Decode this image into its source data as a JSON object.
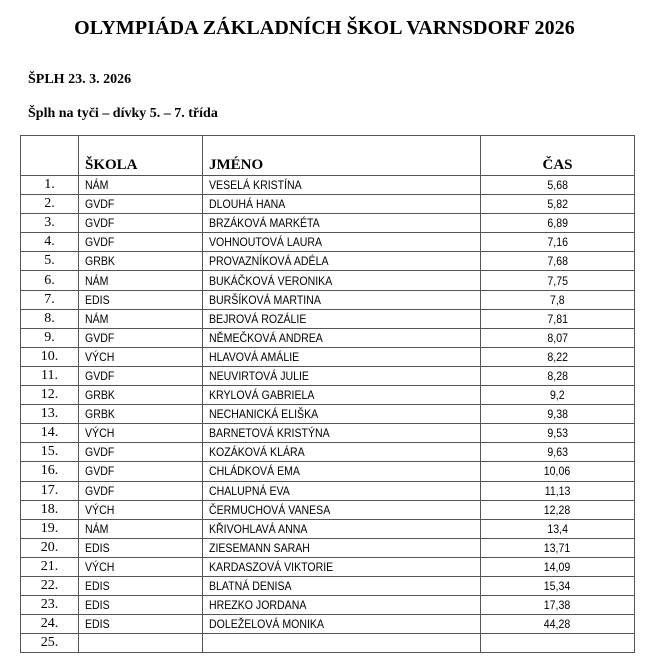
{
  "title": "OLYMPIÁDA ZÁKLADNÍCH ŠKOL VARNSDORF 2026",
  "event": "ŠPLH 23. 3. 2026",
  "category": "Šplh na tyči – dívky 5. – 7. třída",
  "table": {
    "headers": [
      "",
      "ŠKOLA",
      "JMÉNO",
      "ČAS"
    ],
    "rows": [
      {
        "rank": "1.",
        "school": "NÁM",
        "name": "VESELÁ KRISTÍNA",
        "time": "5,68"
      },
      {
        "rank": "2.",
        "school": "GVDF",
        "name": "DLOUHÁ HANA",
        "time": "5,82"
      },
      {
        "rank": "3.",
        "school": "GVDF",
        "name": "BRZÁKOVÁ MARKÉTA",
        "time": "6,89"
      },
      {
        "rank": "4.",
        "school": "GVDF",
        "name": "VOHNOUTOVÁ LAURA",
        "time": "7,16"
      },
      {
        "rank": "5.",
        "school": "GRBK",
        "name": "PROVAZNÍKOVÁ ADÉLA",
        "time": "7,68"
      },
      {
        "rank": "6.",
        "school": "NÁM",
        "name": "BUKÁČKOVÁ VERONIKA",
        "time": "7,75"
      },
      {
        "rank": "7.",
        "school": "EDIS",
        "name": "BURŠÍKOVÁ MARTINA",
        "time": "7,8"
      },
      {
        "rank": "8.",
        "school": "NÁM",
        "name": "BEJROVÁ ROZÁLIE",
        "time": "7,81"
      },
      {
        "rank": "9.",
        "school": "GVDF",
        "name": "NĚMEČKOVÁ ANDREA",
        "time": "8,07"
      },
      {
        "rank": "10.",
        "school": "VÝCH",
        "name": "HLAVOVÁ AMÁLIE",
        "time": "8,22"
      },
      {
        "rank": "11.",
        "school": "GVDF",
        "name": "NEUVIRTOVÁ JULIE",
        "time": "8,28"
      },
      {
        "rank": "12.",
        "school": "GRBK",
        "name": "KRYLOVÁ GABRIELA",
        "time": "9,2"
      },
      {
        "rank": "13.",
        "school": "GRBK",
        "name": "NECHANICKÁ ELIŠKA",
        "time": "9,38"
      },
      {
        "rank": "14.",
        "school": "VÝCH",
        "name": "BARNETOVÁ KRISTÝNA",
        "time": "9,53"
      },
      {
        "rank": "15.",
        "school": "GVDF",
        "name": "KOZÁKOVÁ KLÁRA",
        "time": "9,63"
      },
      {
        "rank": "16.",
        "school": "GVDF",
        "name": "CHLÁDKOVÁ EMA",
        "time": "10,06"
      },
      {
        "rank": "17.",
        "school": "GVDF",
        "name": "CHALUPNÁ EVA",
        "time": "11,13"
      },
      {
        "rank": "18.",
        "school": "VÝCH",
        "name": "ČERMUCHOVÁ VANESA",
        "time": "12,28"
      },
      {
        "rank": "19.",
        "school": "NÁM",
        "name": "KŘIVOHLAVÁ ANNA",
        "time": "13,4"
      },
      {
        "rank": "20.",
        "school": "EDIS",
        "name": "ZIESEMANN SARAH",
        "time": "13,71"
      },
      {
        "rank": "21.",
        "school": "VÝCH",
        "name": "KARDASZOVÁ VIKTORIE",
        "time": "14,09"
      },
      {
        "rank": "22.",
        "school": "EDIS",
        "name": "BLATNÁ DENISA",
        "time": "15,34"
      },
      {
        "rank": "23.",
        "school": "EDIS",
        "name": "HREZKO JORDANA",
        "time": "17,38"
      },
      {
        "rank": "24.",
        "school": "EDIS",
        "name": "DOLEŽELOVÁ MONIKA",
        "time": "44,28"
      },
      {
        "rank": "25.",
        "school": "",
        "name": "",
        "time": ""
      }
    ]
  }
}
